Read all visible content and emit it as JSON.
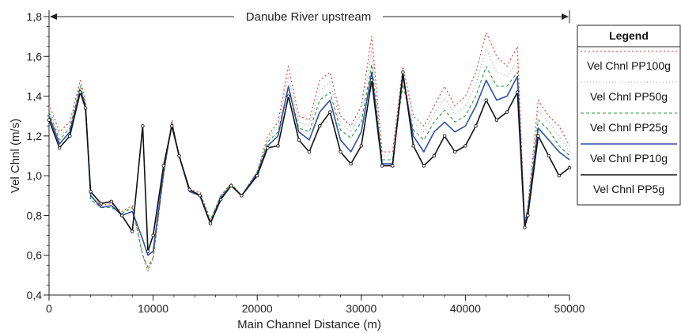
{
  "chart_data": {
    "type": "line",
    "xlabel": "Main Channel Distance (m)",
    "ylabel": "Vel Chnl (m/s)",
    "xlim": [
      0,
      50000
    ],
    "ylim": [
      0.4,
      1.8
    ],
    "x_ticks": [
      0,
      10000,
      20000,
      30000,
      40000,
      50000
    ],
    "x_tick_labels": [
      "0",
      "10000",
      "20000",
      "30000",
      "40000",
      "50000"
    ],
    "y_ticks": [
      0.4,
      0.6,
      0.8,
      1.0,
      1.2,
      1.4,
      1.6,
      1.8
    ],
    "y_tick_labels": [
      "0,4",
      "0,6",
      "0,8",
      "1,0",
      "1,2",
      "1,4",
      "1,6",
      "1,8"
    ],
    "grid": false,
    "annotation": {
      "text": "Danube River upstream",
      "x_from": 0,
      "x_to": 50000
    },
    "legend": {
      "title": "Legend",
      "placement": "right"
    },
    "x": [
      0,
      1000,
      2000,
      3000,
      3500,
      4000,
      5000,
      6000,
      7000,
      8000,
      9000,
      9500,
      10000,
      11000,
      11800,
      12500,
      13500,
      14500,
      15500,
      16500,
      17500,
      18500,
      20000,
      21000,
      22000,
      23000,
      24000,
      25000,
      26000,
      27000,
      28000,
      29000,
      30000,
      31000,
      32000,
      33000,
      34000,
      35000,
      36000,
      37000,
      38000,
      39000,
      40000,
      41000,
      42000,
      43000,
      44000,
      45000,
      45700,
      46000,
      47000,
      48000,
      49000,
      50000
    ],
    "series": [
      {
        "name": "Vel Chnl PP100g",
        "color": "#e8352b",
        "dash": "2,3",
        "values": [
          1.36,
          1.22,
          1.27,
          1.48,
          1.38,
          0.9,
          0.85,
          0.86,
          0.82,
          0.85,
          0.6,
          0.52,
          0.58,
          1.0,
          1.28,
          1.1,
          0.93,
          0.92,
          0.78,
          0.9,
          0.96,
          0.9,
          1.02,
          1.2,
          1.27,
          1.55,
          1.3,
          1.28,
          1.48,
          1.52,
          1.3,
          1.25,
          1.35,
          1.7,
          1.12,
          1.12,
          1.55,
          1.3,
          1.25,
          1.35,
          1.45,
          1.35,
          1.4,
          1.52,
          1.72,
          1.6,
          1.55,
          1.65,
          0.76,
          0.85,
          1.38,
          1.3,
          1.25,
          1.15
        ]
      },
      {
        "name": "Vel Chnl PP50g",
        "color": "#9a9a9a",
        "dash": "1,3",
        "values": [
          1.34,
          1.2,
          1.25,
          1.46,
          1.37,
          0.9,
          0.84,
          0.85,
          0.82,
          0.84,
          0.6,
          0.53,
          0.58,
          1.0,
          1.27,
          1.1,
          0.92,
          0.92,
          0.78,
          0.9,
          0.96,
          0.9,
          1.02,
          1.18,
          1.25,
          1.5,
          1.27,
          1.25,
          1.43,
          1.47,
          1.27,
          1.22,
          1.31,
          1.63,
          1.1,
          1.1,
          1.5,
          1.27,
          1.22,
          1.31,
          1.39,
          1.31,
          1.35,
          1.46,
          1.64,
          1.52,
          1.5,
          1.58,
          0.76,
          0.85,
          1.33,
          1.27,
          1.2,
          1.12
        ]
      },
      {
        "name": "Vel Chnl PP25g",
        "color": "#2c9a3a",
        "dash": "4,3",
        "values": [
          1.32,
          1.18,
          1.24,
          1.45,
          1.36,
          0.88,
          0.84,
          0.84,
          0.81,
          0.84,
          0.6,
          0.54,
          0.59,
          1.0,
          1.27,
          1.1,
          0.92,
          0.91,
          0.77,
          0.9,
          0.96,
          0.9,
          1.02,
          1.17,
          1.22,
          1.45,
          1.24,
          1.22,
          1.38,
          1.42,
          1.23,
          1.19,
          1.27,
          1.56,
          1.08,
          1.08,
          1.46,
          1.23,
          1.18,
          1.27,
          1.33,
          1.27,
          1.3,
          1.4,
          1.55,
          1.45,
          1.45,
          1.52,
          0.75,
          0.84,
          1.28,
          1.23,
          1.15,
          1.1
        ]
      },
      {
        "name": "Vel Chnl PP10g",
        "color": "#2f4fa8",
        "dash": "",
        "values": [
          1.3,
          1.16,
          1.22,
          1.43,
          1.35,
          0.9,
          0.84,
          0.85,
          0.8,
          0.82,
          0.68,
          0.6,
          0.62,
          1.02,
          1.26,
          1.1,
          0.92,
          0.9,
          0.76,
          0.89,
          0.95,
          0.9,
          1.01,
          1.15,
          1.2,
          1.45,
          1.22,
          1.18,
          1.32,
          1.38,
          1.18,
          1.12,
          1.22,
          1.52,
          1.06,
          1.06,
          1.5,
          1.2,
          1.12,
          1.22,
          1.27,
          1.22,
          1.25,
          1.35,
          1.48,
          1.38,
          1.4,
          1.5,
          0.75,
          0.82,
          1.24,
          1.18,
          1.12,
          1.08
        ]
      },
      {
        "name": "Vel Chnl PP5g",
        "color": "#111111",
        "dash": "",
        "values": [
          1.28,
          1.14,
          1.2,
          1.42,
          1.34,
          0.92,
          0.86,
          0.87,
          0.8,
          0.72,
          1.25,
          0.62,
          0.7,
          1.05,
          1.25,
          1.1,
          0.93,
          0.9,
          0.76,
          0.88,
          0.95,
          0.9,
          1.0,
          1.14,
          1.15,
          1.4,
          1.18,
          1.12,
          1.25,
          1.32,
          1.12,
          1.06,
          1.15,
          1.48,
          1.05,
          1.05,
          1.52,
          1.15,
          1.05,
          1.1,
          1.2,
          1.12,
          1.15,
          1.25,
          1.38,
          1.28,
          1.32,
          1.42,
          0.74,
          0.8,
          1.2,
          1.1,
          1.0,
          1.04
        ]
      }
    ]
  }
}
